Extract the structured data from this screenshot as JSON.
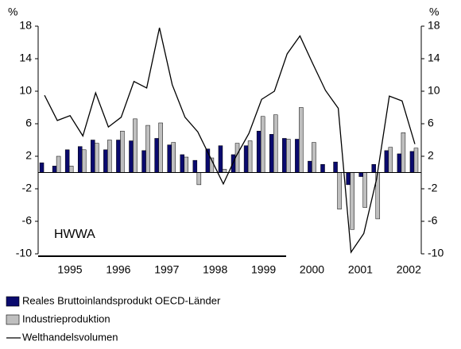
{
  "chart_data": {
    "type": "bar_line",
    "y_label": "%",
    "y2_label": "%",
    "annotation": "HWWA",
    "categories": [
      null,
      null,
      null,
      null,
      null,
      null,
      null,
      null,
      null,
      null,
      null,
      null,
      null,
      null,
      null,
      null,
      null,
      null,
      null,
      null,
      null,
      null,
      null,
      null,
      null,
      null,
      null,
      null,
      null,
      null
    ],
    "xticks": [
      1995,
      1996,
      1997,
      1998,
      1999,
      2000,
      2001,
      2002
    ],
    "ylim": [
      -10,
      18
    ],
    "yticks": [
      18,
      14,
      10,
      6,
      2,
      -2,
      -6,
      -10
    ],
    "y2lim": [
      -10,
      18
    ],
    "y2ticks": [
      18,
      14,
      10,
      6,
      2,
      -2,
      -6,
      -10
    ],
    "series": [
      {
        "name": "Reales Bruttoinlandsprodukt OECD-Länder",
        "kind": "bar",
        "color": "#0a0a6e",
        "values": [
          1.2,
          0.8,
          2.8,
          3.2,
          4.0,
          2.8,
          4.0,
          3.9,
          2.7,
          4.2,
          3.4,
          2.2,
          1.5,
          2.9,
          3.3,
          2.2,
          3.3,
          5.1,
          4.7,
          4.2,
          4.1,
          1.4,
          1.0,
          1.3,
          -1.5,
          -0.5,
          1.0,
          2.7,
          2.3,
          2.6
        ]
      },
      {
        "name": "Industrieproduktion",
        "kind": "bar",
        "color": "#bfbfbf",
        "values": [
          null,
          2.0,
          0.8,
          2.8,
          3.6,
          4.0,
          5.1,
          6.6,
          5.8,
          6.1,
          3.7,
          1.9,
          -1.5,
          1.8,
          0.4,
          3.6,
          3.9,
          6.9,
          7.1,
          4.1,
          8.0,
          3.7,
          0,
          -4.5,
          -7.0,
          -4.3,
          -5.7,
          3.1,
          4.9,
          3.0
        ]
      },
      {
        "name": "Welthandelsvolumen",
        "kind": "line",
        "color": "#000000",
        "values": [
          9.5,
          6.4,
          7.0,
          4.5,
          9.8,
          5.6,
          6.8,
          11.2,
          10.4,
          17.8,
          10.8,
          6.8,
          5.0,
          1.8,
          -1.4,
          2.0,
          4.8,
          9.0,
          10.0,
          14.6,
          16.8,
          13.4,
          10.1,
          7.9,
          -9.8,
          -7.5,
          -0.8,
          9.4,
          8.8,
          3.5
        ]
      }
    ]
  }
}
